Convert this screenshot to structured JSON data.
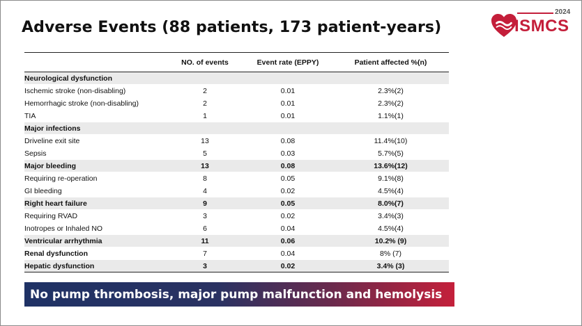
{
  "title": "Adverse Events (88 patients, 173 patient-years)",
  "logo": {
    "year": "2024",
    "text": "ISMCS",
    "brand_color": "#c41e3a"
  },
  "table": {
    "headers": [
      "",
      "NO. of events",
      "Event rate (EPPY)",
      "Patient affected %(n)"
    ],
    "rows": [
      {
        "label": "Neurological dysfunction",
        "events": "",
        "rate": "",
        "affected": "",
        "category": true,
        "bold": true
      },
      {
        "label": "Ischemic stroke (non-disabling)",
        "events": "2",
        "rate": "0.01",
        "affected": "2.3%(2)"
      },
      {
        "label": "Hemorrhagic stroke (non-disabling)",
        "events": "2",
        "rate": "0.01",
        "affected": "2.3%(2)"
      },
      {
        "label": "TIA",
        "events": "1",
        "rate": "0.01",
        "affected": "1.1%(1)"
      },
      {
        "label": "Major infections",
        "events": "",
        "rate": "",
        "affected": "",
        "category": true,
        "bold": true
      },
      {
        "label": "Driveline exit site",
        "events": "13",
        "rate": "0.08",
        "affected": "11.4%(10)"
      },
      {
        "label": "Sepsis",
        "events": "5",
        "rate": "0.03",
        "affected": "5.7%(5)"
      },
      {
        "label": "Major bleeding",
        "events": "13",
        "rate": "0.08",
        "affected": "13.6%(12)",
        "category": true,
        "bold": true
      },
      {
        "label": "Requiring re-operation",
        "events": "8",
        "rate": "0.05",
        "affected": "9.1%(8)"
      },
      {
        "label": "GI bleeding",
        "events": "4",
        "rate": "0.02",
        "affected": "4.5%(4)"
      },
      {
        "label": "Right heart failure",
        "events": "9",
        "rate": "0.05",
        "affected": "8.0%(7)",
        "category": true,
        "bold": true
      },
      {
        "label": "Requiring RVAD",
        "events": "3",
        "rate": "0.02",
        "affected": "3.4%(3)"
      },
      {
        "label": "Inotropes or Inhaled NO",
        "events": "6",
        "rate": "0.04",
        "affected": "4.5%(4)"
      },
      {
        "label": "Ventricular arrhythmia",
        "events": "11",
        "rate": "0.06",
        "affected": "10.2% (9)",
        "category": true,
        "bold": true
      },
      {
        "label": "Renal dysfunction",
        "events": "7",
        "rate": "0.04",
        "affected": "8% (7)",
        "bold": true
      },
      {
        "label": "Hepatic dysfunction",
        "events": "3",
        "rate": "0.02",
        "affected": "3.4% (3)",
        "category": true,
        "bold": true
      }
    ]
  },
  "banner": "No pump thrombosis, major pump malfunction and  hemolysis"
}
